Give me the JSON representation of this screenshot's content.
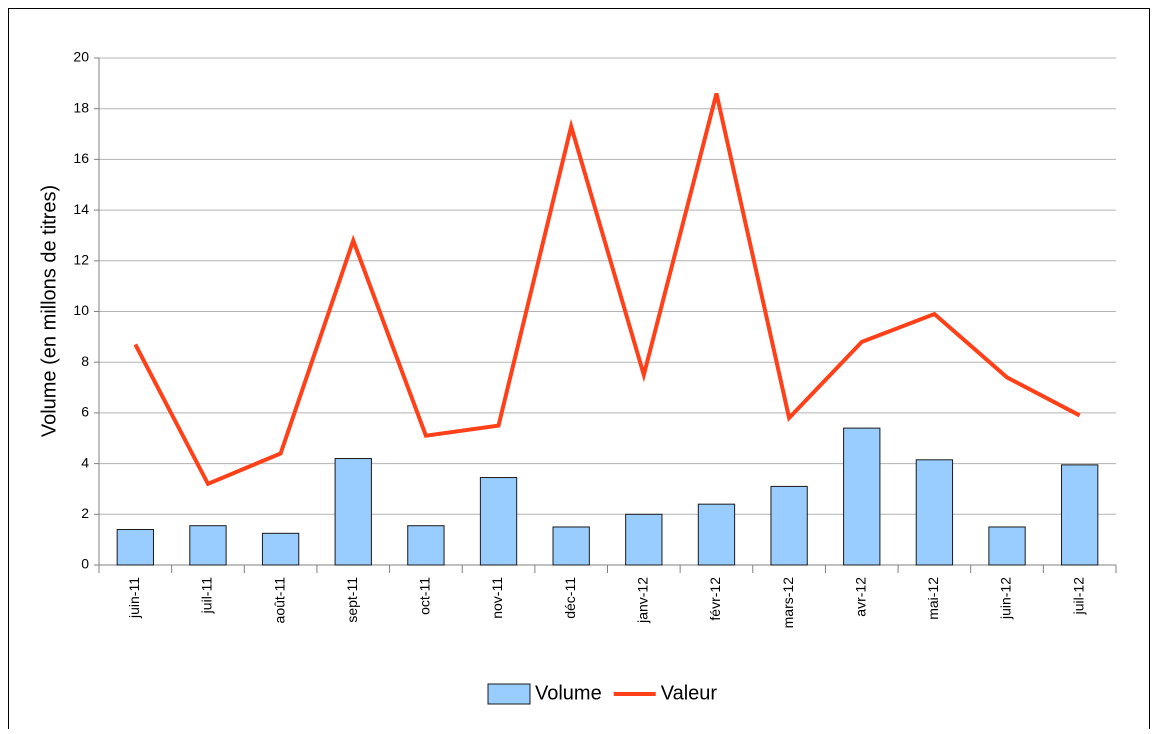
{
  "chart_data": {
    "type": "bar",
    "categories": [
      "juin-11",
      "juil-11",
      "août-11",
      "sept-11",
      "oct-11",
      "nov-11",
      "déc-11",
      "janv-12",
      "févr-12",
      "mars-12",
      "avr-12",
      "mai-12",
      "juin-12",
      "juil-12"
    ],
    "y_label": "Volume (en millons de titres)",
    "series": [
      {
        "name": "Volume",
        "type": "bar",
        "color": "#99ccff",
        "values": [
          1.4,
          1.55,
          1.25,
          4.2,
          1.55,
          3.45,
          1.5,
          2.0,
          2.4,
          3.1,
          5.4,
          4.15,
          1.5,
          3.95
        ]
      },
      {
        "name": "Valeur",
        "type": "line",
        "color": "#ff4019",
        "values": [
          8.7,
          3.2,
          4.4,
          12.8,
          5.1,
          5.5,
          17.3,
          7.5,
          18.6,
          5.8,
          8.8,
          9.9,
          7.4,
          5.9
        ]
      }
    ],
    "ylim": [
      0,
      20
    ],
    "yticks": [
      0,
      2,
      4,
      6,
      8,
      10,
      12,
      14,
      16,
      18,
      20
    ],
    "grid": true,
    "legend": "bottom"
  }
}
